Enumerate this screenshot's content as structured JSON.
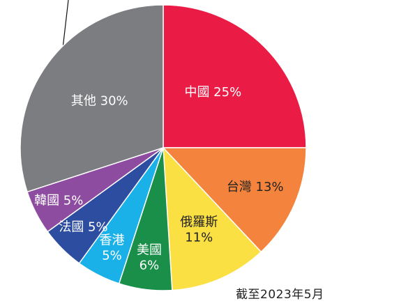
{
  "chart_data": {
    "type": "pie",
    "as_of": "截至2023年5月",
    "slices": [
      {
        "name": "中國",
        "value": 25,
        "label": "中國 25%",
        "color": "#ea1c45",
        "text_color": "#ffffff"
      },
      {
        "name": "台灣",
        "value": 13,
        "label": "台灣 13%",
        "color": "#f4843d",
        "text_color": "#222222"
      },
      {
        "name": "俄羅斯",
        "value": 11,
        "label": "俄羅斯\n11%",
        "color": "#fbe044",
        "text_color": "#222222"
      },
      {
        "name": "美國",
        "value": 6,
        "label": "美國\n6%",
        "color": "#1a8f49",
        "text_color": "#ffffff"
      },
      {
        "name": "香港",
        "value": 5,
        "label": "香港\n5%",
        "color": "#1ab1e8",
        "text_color": "#ffffff"
      },
      {
        "name": "法國",
        "value": 5,
        "label": "法國 5%",
        "color": "#2c4da0",
        "text_color": "#ffffff"
      },
      {
        "name": "韓國",
        "value": 5,
        "label": "韓國 5%",
        "color": "#8e4ca1",
        "text_color": "#ffffff"
      },
      {
        "name": "其他",
        "value": 30,
        "label": "其他 30%",
        "color": "#7c7d80",
        "text_color": "#ffffff"
      }
    ]
  }
}
